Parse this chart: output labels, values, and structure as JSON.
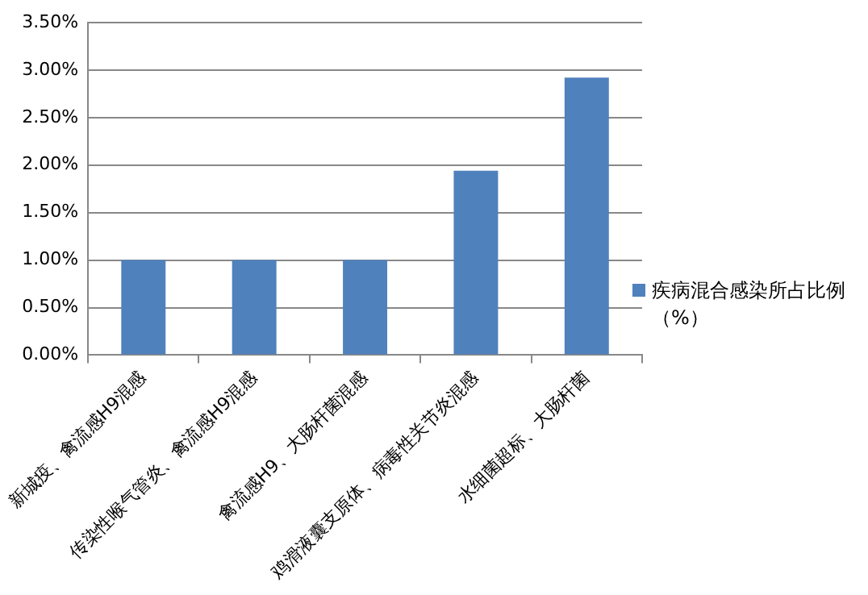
{
  "chart_data": {
    "type": "bar",
    "categories": [
      "新城疫、禽流感H9混感",
      "传染性喉气管炎、禽流感H9混感",
      "禽流感H9、大肠杆菌混感",
      "鸡滑液囊支原体、病毒性关节炎混感",
      "水细菌超标、大肠杆菌"
    ],
    "series": [
      {
        "name": "疾病混合感染所占比例（%）",
        "color": "#4f81bd",
        "values": [
          1.0,
          1.0,
          1.0,
          1.94,
          2.92
        ]
      }
    ],
    "ylim": [
      0,
      3.5
    ],
    "yticks": [
      {
        "value": 0,
        "label": "0.00%"
      },
      {
        "value": 0.5,
        "label": "0.50%"
      },
      {
        "value": 1,
        "label": "1.00%"
      },
      {
        "value": 1.5,
        "label": "1.50%"
      },
      {
        "value": 2,
        "label": "2.00%"
      },
      {
        "value": 2.5,
        "label": "2.50%"
      },
      {
        "value": 3,
        "label": "3.00%"
      },
      {
        "value": 3.5,
        "label": "3.50%"
      }
    ],
    "grid": "y",
    "legend": "right"
  }
}
